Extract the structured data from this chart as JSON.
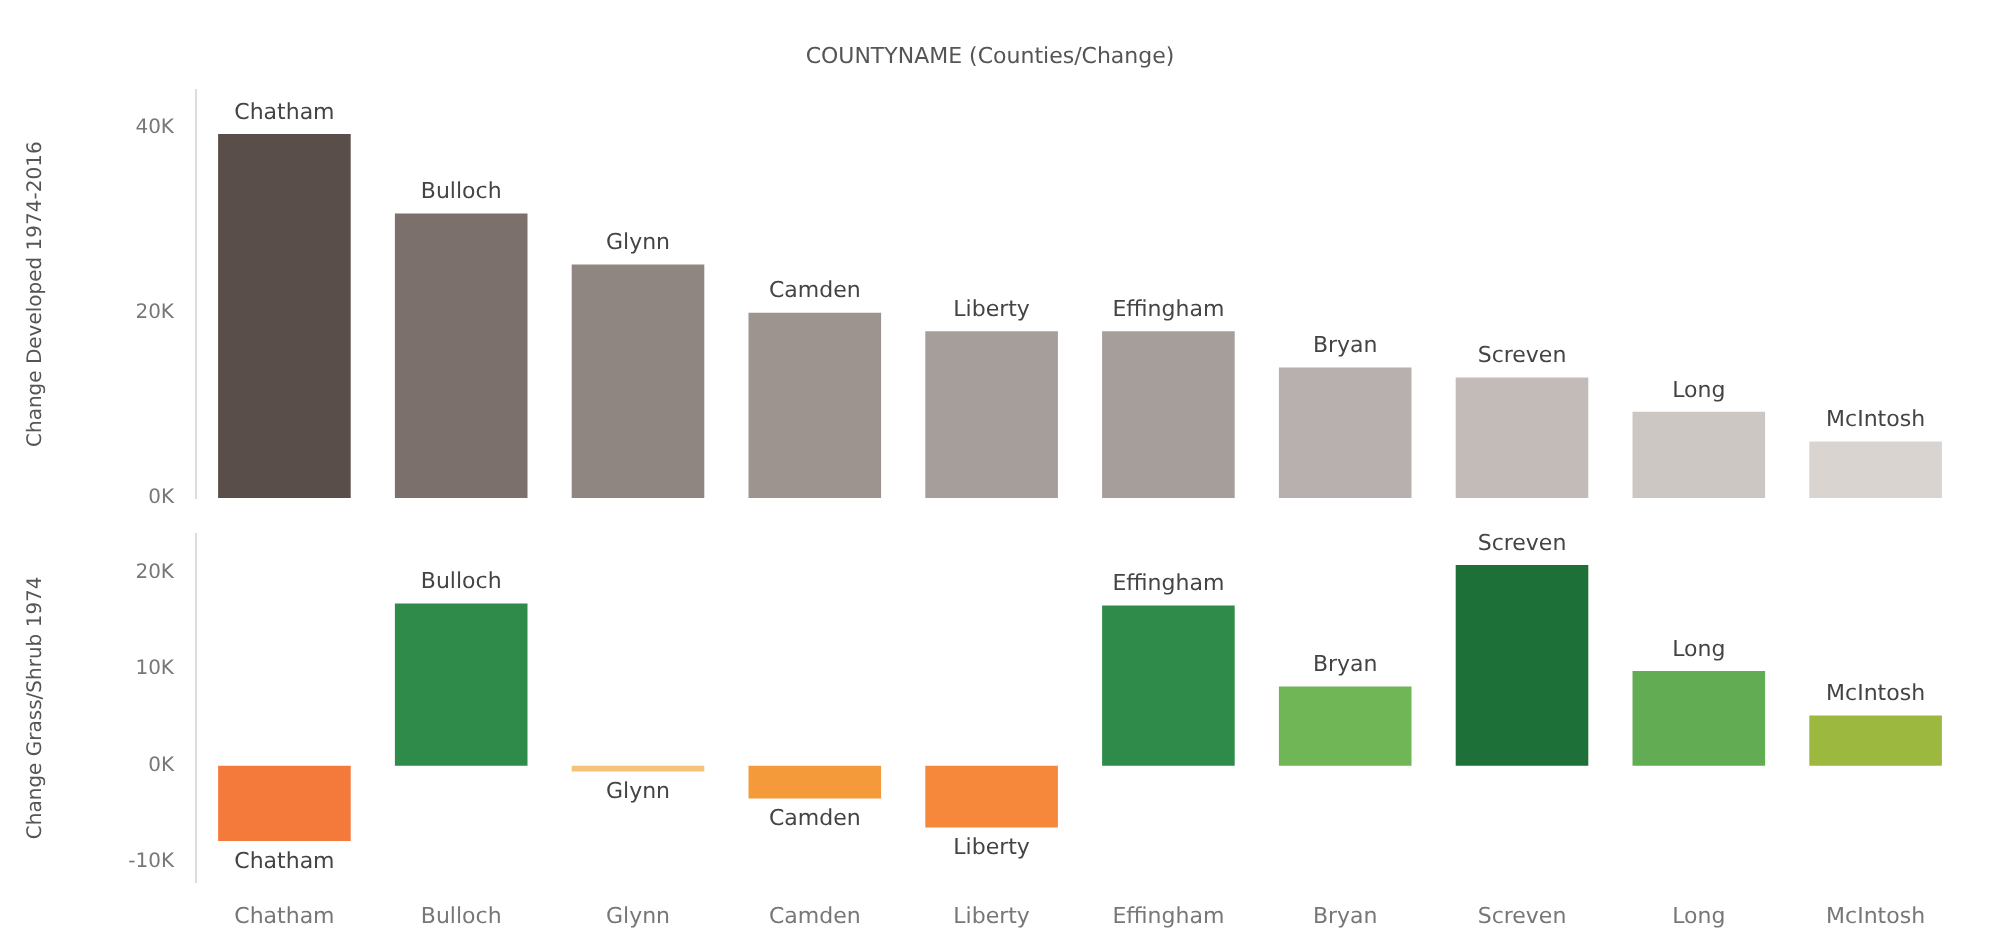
{
  "chart_data": [
    {
      "type": "bar",
      "title": "COUNTYNAME (Counties/Change)",
      "ylabel": "Change Developed 1974-2016",
      "categories": [
        "Chatham",
        "Bulloch",
        "Glynn",
        "Camden",
        "Liberty",
        "Effingham",
        "Bryan",
        "Screven",
        "Long",
        "McIntosh"
      ],
      "values": [
        39.3,
        30.7,
        25.2,
        20,
        18,
        18,
        14.1,
        13,
        9.3,
        6.1
      ],
      "colors": [
        "#5a4e4a",
        "#7b706c",
        "#8f8681",
        "#9d9490",
        "#a69e9b",
        "#a69e9b",
        "#b8b0ae",
        "#c2bbb8",
        "#cdc7c4",
        "#d9d4d0"
      ],
      "ylim": [
        0,
        44
      ],
      "yticks": [
        {
          "value": 0,
          "label": "0K"
        },
        {
          "value": 20,
          "label": "20K"
        },
        {
          "value": 40,
          "label": "40K"
        }
      ],
      "tick_labels": "y",
      "annotations": [
        {
          "text": "Chatham",
          "x": "Chatham",
          "y": 39.3
        },
        {
          "text": "Bulloch",
          "x": "Bulloch",
          "y": 30.7
        },
        {
          "text": "Glynn",
          "x": "Glynn",
          "y": 25.2
        },
        {
          "text": "Camden",
          "x": "Camden",
          "y": 20
        },
        {
          "text": "Liberty",
          "x": "Liberty",
          "y": 18
        },
        {
          "text": "Effingham",
          "x": "Effingham",
          "y": 18
        },
        {
          "text": "Bryan",
          "x": "Bryan",
          "y": 14.1
        },
        {
          "text": "Screven",
          "x": "Screven",
          "y": 13
        },
        {
          "text": "Long",
          "x": "Long",
          "y": 9.3
        },
        {
          "text": "McIntosh",
          "x": "McIntosh",
          "y": 6.1
        }
      ]
    },
    {
      "type": "bar",
      "ylabel": "Change Grass/Shrub 1974",
      "categories": [
        "Chatham",
        "Bulloch",
        "Glynn",
        "Camden",
        "Liberty",
        "Effingham",
        "Bryan",
        "Screven",
        "Long",
        "McIntosh"
      ],
      "values": [
        -7.8,
        16.8,
        -0.6,
        -3.4,
        -6.4,
        16.6,
        8.2,
        20.8,
        9.8,
        5.2
      ],
      "colors": [
        "#f47a3c",
        "#2e8b4a",
        "#f5c27a",
        "#f59a3a",
        "#f5883a",
        "#2e8b4a",
        "#70b556",
        "#1d7038",
        "#62ad54",
        "#9cb83e"
      ],
      "ylim": [
        -12,
        24
      ],
      "yticks": [
        {
          "value": -10,
          "label": "-10K"
        },
        {
          "value": 0,
          "label": "0K"
        },
        {
          "value": 10,
          "label": "10K"
        },
        {
          "value": 20,
          "label": "20K"
        }
      ],
      "annotations": [
        {
          "text": "Chatham",
          "x": "Chatham",
          "y": -7.8
        },
        {
          "text": "Bulloch",
          "x": "Bulloch",
          "y": 16.8
        },
        {
          "text": "Glynn",
          "x": "Glynn",
          "y": -0.6
        },
        {
          "text": "Camden",
          "x": "Camden",
          "y": -3.4
        },
        {
          "text": "Liberty",
          "x": "Liberty",
          "y": -6.4
        },
        {
          "text": "Effingham",
          "x": "Effingham",
          "y": 16.6
        },
        {
          "text": "Bryan",
          "x": "Bryan",
          "y": 8.2
        },
        {
          "text": "Screven",
          "x": "Screven",
          "y": 20.8
        },
        {
          "text": "Long",
          "x": "Long",
          "y": 9.8
        },
        {
          "text": "McIntosh",
          "x": "McIntosh",
          "y": 5.2
        }
      ]
    }
  ]
}
